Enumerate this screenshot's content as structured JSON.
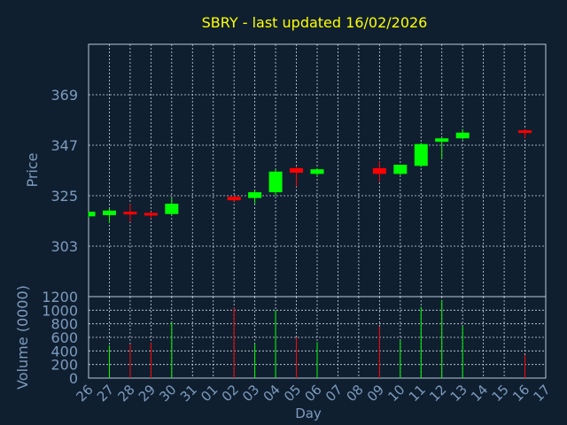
{
  "chart_data": {
    "type": "candlestick",
    "title": "SBRY - last updated 16/02/2026",
    "xlabel": "Day",
    "ylabel_price": "Price",
    "ylabel_volume": "Volume (0000)",
    "days": [
      "26",
      "27",
      "28",
      "29",
      "30",
      "31",
      "01",
      "02",
      "03",
      "04",
      "05",
      "06",
      "07",
      "08",
      "09",
      "10",
      "11",
      "12",
      "13",
      "14",
      "15",
      "16",
      "17"
    ],
    "price_ticks": [
      303,
      325,
      347,
      369
    ],
    "price_range": [
      281,
      391
    ],
    "volume_ticks": [
      0,
      200,
      400,
      600,
      800,
      1000,
      1200
    ],
    "volume_range": [
      0,
      1200
    ],
    "grid": true,
    "colors": {
      "background": "#0f1f30",
      "up": "#00ff00",
      "down": "#ff0000",
      "title": "#ffff00",
      "axis_text": "#7d9bbd",
      "frame": "#b8c8d8",
      "grid": "#d0d8e0"
    },
    "candles": [
      {
        "day": "26",
        "open": 316.0,
        "high": 318.0,
        "low": 315.5,
        "close": 318.0
      },
      {
        "day": "27",
        "open": 316.5,
        "high": 319.5,
        "low": 313.0,
        "close": 318.5
      },
      {
        "day": "28",
        "open": 318.0,
        "high": 321.5,
        "low": 313.5,
        "close": 317.5
      },
      {
        "day": "29",
        "open": 317.5,
        "high": 318.0,
        "low": 315.0,
        "close": 316.5
      },
      {
        "day": "30",
        "open": 317.0,
        "high": 324.0,
        "low": 316.5,
        "close": 321.5
      },
      {
        "day": "02",
        "open": 324.5,
        "high": 325.0,
        "low": 322.5,
        "close": 323.0
      },
      {
        "day": "03",
        "open": 324.0,
        "high": 327.5,
        "low": 321.5,
        "close": 326.5
      },
      {
        "day": "04",
        "open": 326.5,
        "high": 336.5,
        "low": 325.0,
        "close": 335.5
      },
      {
        "day": "05",
        "open": 337.0,
        "high": 337.5,
        "low": 329.0,
        "close": 335.0
      },
      {
        "day": "06",
        "open": 334.5,
        "high": 337.0,
        "low": 333.5,
        "close": 336.5
      },
      {
        "day": "09",
        "open": 337.0,
        "high": 340.0,
        "low": 331.0,
        "close": 334.5
      },
      {
        "day": "10",
        "open": 334.5,
        "high": 338.5,
        "low": 334.0,
        "close": 338.5
      },
      {
        "day": "11",
        "open": 338.0,
        "high": 348.0,
        "low": 337.5,
        "close": 347.5
      },
      {
        "day": "12",
        "open": 348.5,
        "high": 350.0,
        "low": 341.0,
        "close": 350.0
      },
      {
        "day": "13",
        "open": 350.0,
        "high": 354.0,
        "low": 349.5,
        "close": 352.5
      },
      {
        "day": "16",
        "open": 353.5,
        "high": 354.0,
        "low": 350.0,
        "close": 353.0
      }
    ],
    "volume": [
      {
        "day": "27",
        "value": 480,
        "dir": "up"
      },
      {
        "day": "28",
        "value": 500,
        "dir": "down"
      },
      {
        "day": "29",
        "value": 520,
        "dir": "down"
      },
      {
        "day": "30",
        "value": 830,
        "dir": "up"
      },
      {
        "day": "02",
        "value": 1040,
        "dir": "down"
      },
      {
        "day": "03",
        "value": 500,
        "dir": "up"
      },
      {
        "day": "04",
        "value": 1000,
        "dir": "up"
      },
      {
        "day": "05",
        "value": 600,
        "dir": "down"
      },
      {
        "day": "06",
        "value": 530,
        "dir": "up"
      },
      {
        "day": "09",
        "value": 760,
        "dir": "down"
      },
      {
        "day": "10",
        "value": 560,
        "dir": "up"
      },
      {
        "day": "11",
        "value": 1050,
        "dir": "up"
      },
      {
        "day": "12",
        "value": 1150,
        "dir": "up"
      },
      {
        "day": "13",
        "value": 770,
        "dir": "up"
      },
      {
        "day": "16",
        "value": 340,
        "dir": "down"
      }
    ]
  }
}
